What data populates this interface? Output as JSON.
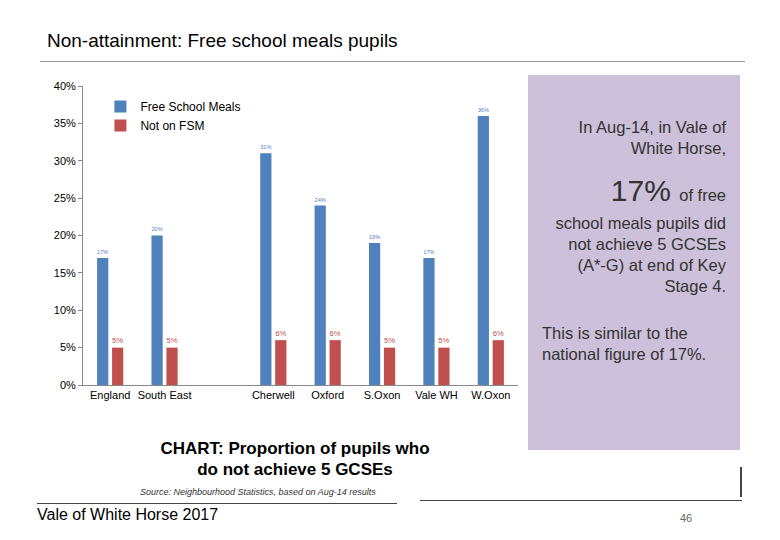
{
  "chart_data": {
    "type": "bar",
    "title": "CHART: Proportion of pupils who do not achieve 5 GCSEs",
    "categories": [
      "England",
      "South East",
      null,
      "Cherwell",
      "Oxford",
      "S.Oxon",
      "Vale WH",
      "W.Oxon"
    ],
    "series": [
      {
        "name": "Free School Meals",
        "color": "#4f81bd",
        "values": [
          17,
          20,
          null,
          31,
          24,
          19,
          17,
          36
        ],
        "value_labels": [
          "17%",
          "20%",
          null,
          "31%",
          "24%",
          "19%",
          "17%",
          "36%"
        ]
      },
      {
        "name": "Not on FSM",
        "color": "#c0504d",
        "values": [
          5,
          5,
          null,
          6,
          6,
          5,
          5,
          6
        ],
        "value_labels": [
          "5%",
          "5%",
          null,
          "6%",
          "6%",
          "5%",
          "5%",
          "6%"
        ]
      }
    ],
    "ylim": [
      0,
      40
    ],
    "yticks": [
      {
        "value": 0,
        "label": "0%"
      },
      {
        "value": 5,
        "label": "5%"
      },
      {
        "value": 10,
        "label": "10%"
      },
      {
        "value": 15,
        "label": "15%"
      },
      {
        "value": 20,
        "label": "20%"
      },
      {
        "value": 25,
        "label": "25%"
      },
      {
        "value": 30,
        "label": "30%"
      },
      {
        "value": 35,
        "label": "35%"
      },
      {
        "value": 40,
        "label": "40%"
      }
    ],
    "grid": false,
    "legend": "upper left",
    "data_labels": true
  },
  "slide": {
    "title": "Non-attainment: Free school meals pupils",
    "source": "Source: Neighbourhood Statistics, based on Aug-14 results",
    "panel_intro": "In Aug-14, in Vale of White Horse,",
    "panel_highlight": "17%",
    "panel_highlight_rest": "of free",
    "panel_body": "school meals pupils did not achieve 5 GCSEs (A*-G) at end of Key Stage 4.",
    "panel_note": "This is similar to the national figure of 17%.",
    "footer": "Vale of White Horse 2017",
    "page_number": 46
  }
}
